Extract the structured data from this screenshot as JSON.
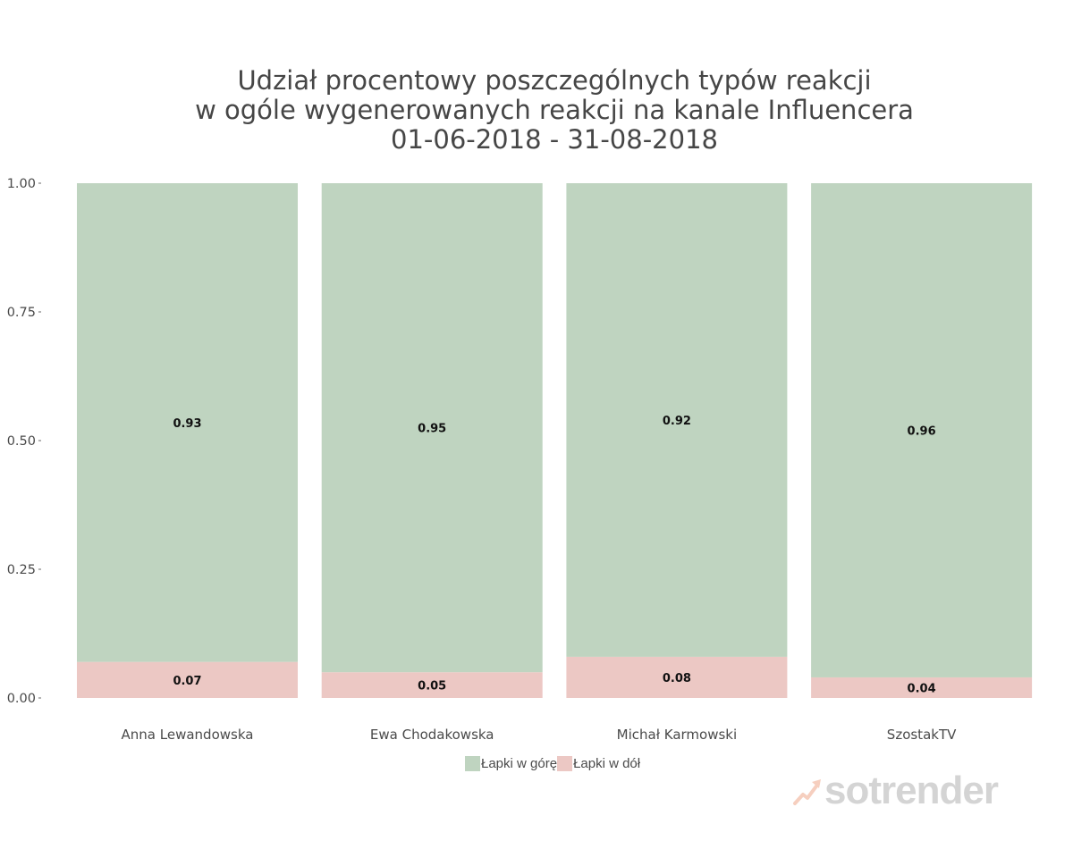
{
  "chart_data": {
    "type": "bar",
    "stacked": true,
    "title_lines": [
      "Udział procentowy poszczególnych typów reakcji",
      "w ogóle wygenerowanych reakcji na kanale Influencera",
      "01-06-2018 - 31-08-2018"
    ],
    "categories": [
      "Anna Lewandowska",
      "Ewa Chodakowska",
      "Michał Karmowski",
      "SzostakTV"
    ],
    "series": [
      {
        "name": "Łapki w dół",
        "values": [
          0.07,
          0.05,
          0.08,
          0.04
        ],
        "labels": [
          "0.07",
          "0.05",
          "0.08",
          "0.04"
        ],
        "color": "#ecc8c4"
      },
      {
        "name": "Łapki w górę",
        "values": [
          0.93,
          0.95,
          0.92,
          0.96
        ],
        "labels": [
          "0.93",
          "0.95",
          "0.92",
          "0.96"
        ],
        "color": "#bfd4c0"
      }
    ],
    "legend_order": [
      "Łapki w górę",
      "Łapki w dół"
    ],
    "y_ticks": [
      0,
      0.25,
      0.5,
      0.75,
      1.0
    ],
    "y_tick_labels": [
      "0.00",
      "0.25",
      "0.50",
      "0.75",
      "1.00"
    ],
    "ylim": [
      0,
      1
    ],
    "xlabel": "",
    "ylabel": "",
    "grid": false,
    "legend_position": "bottom"
  },
  "logo": {
    "text": "sotrender",
    "icon": "rising-arrow-icon"
  }
}
